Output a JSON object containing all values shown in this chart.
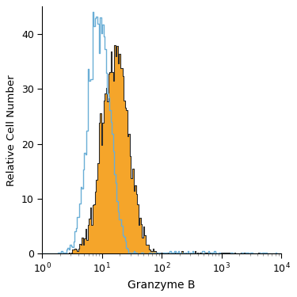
{
  "title": "",
  "xlabel": "Granzyme B",
  "ylabel": "Relative Cell Number",
  "xlim": [
    1,
    10000
  ],
  "ylim": [
    0,
    45
  ],
  "yticks": [
    0,
    10,
    20,
    30,
    40
  ],
  "blue_color": "#6aaed6",
  "orange_color": "#f5a52a",
  "orange_edge_color": "#2a2a2a",
  "background_color": "#ffffff",
  "figsize": [
    3.75,
    3.75
  ],
  "dpi": 100,
  "blue_peak_y": 44,
  "orange_peak_y": 38,
  "blue_log_mean": 0.95,
  "blue_log_std": 0.18,
  "orange_log_mean": 1.22,
  "orange_log_std": 0.22,
  "n_bins": 200
}
